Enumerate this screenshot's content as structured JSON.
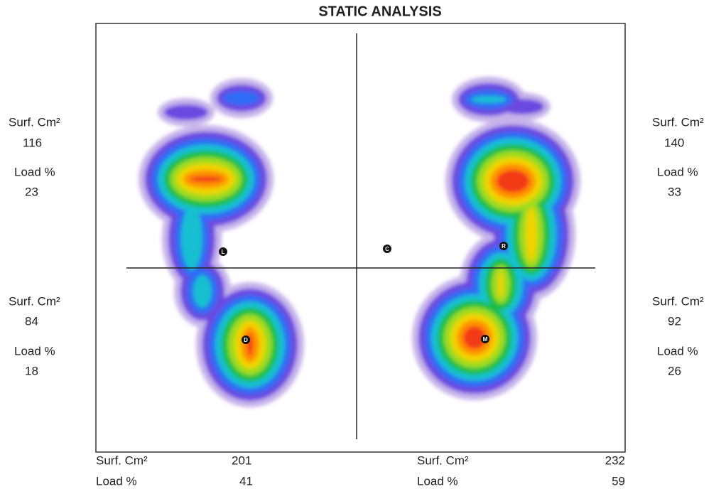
{
  "title": "STATIC ANALYSIS",
  "left_foot": {
    "front": {
      "surface_label": "Surf. Cm²",
      "surface": 116,
      "load_label": "Load %",
      "load": 23
    },
    "rear": {
      "surface_label": "Surf. Cm²",
      "surface": 84,
      "load_label": "Load %",
      "load": 18
    },
    "total": {
      "surface_label": "Surf. Cm²",
      "surface": 201,
      "load_label": "Load %",
      "load": 41
    }
  },
  "right_foot": {
    "front": {
      "surface_label": "Surf. Cm²",
      "surface": 140,
      "load_label": "Load %",
      "load": 33
    },
    "rear": {
      "surface_label": "Surf. Cm²",
      "surface": 92,
      "load_label": "Load %",
      "load": 26
    },
    "total": {
      "surface_label": "Surf. Cm²",
      "surface": 232,
      "load_label": "Load %",
      "load": 59
    }
  },
  "markers": [
    "L",
    "D",
    "C",
    "R",
    "M"
  ]
}
